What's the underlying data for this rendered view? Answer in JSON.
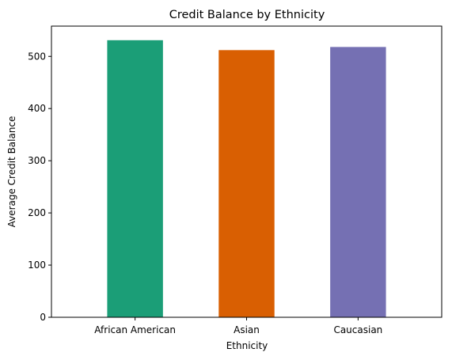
{
  "chart_data": {
    "type": "bar",
    "title": "Credit Balance by Ethnicity",
    "xlabel": "Ethnicity",
    "ylabel": "Average Credit Balance",
    "categories": [
      "African American",
      "Asian",
      "Caucasian"
    ],
    "values": [
      531,
      512,
      518
    ],
    "colors": [
      "#1b9e77",
      "#d95f02",
      "#7570b3"
    ],
    "ylim": [
      0,
      558
    ],
    "yticks": [
      0,
      100,
      200,
      300,
      400,
      500
    ],
    "grid": false,
    "legend": "none"
  }
}
